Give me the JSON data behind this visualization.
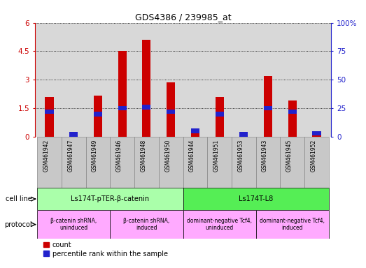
{
  "title": "GDS4386 / 239985_at",
  "samples": [
    "GSM461942",
    "GSM461947",
    "GSM461949",
    "GSM461946",
    "GSM461948",
    "GSM461950",
    "GSM461944",
    "GSM461951",
    "GSM461953",
    "GSM461943",
    "GSM461945",
    "GSM461952"
  ],
  "counts": [
    2.1,
    0.15,
    2.15,
    4.5,
    5.1,
    2.85,
    0.3,
    2.1,
    0.12,
    3.2,
    1.9,
    0.22
  ],
  "percentiles": [
    22,
    2,
    20,
    25,
    26,
    22,
    5,
    20,
    2,
    25,
    22,
    3
  ],
  "ylim_left": [
    0,
    6
  ],
  "ylim_right": [
    0,
    100
  ],
  "yticks_left": [
    0,
    1.5,
    3,
    4.5,
    6
  ],
  "yticks_right": [
    0,
    25,
    50,
    75,
    100
  ],
  "ytick_labels_left": [
    "0",
    "1.5",
    "3",
    "4.5",
    "6"
  ],
  "ytick_labels_right": [
    "0",
    "25",
    "50",
    "75",
    "100%"
  ],
  "bar_color": "#cc0000",
  "blue_color": "#2222cc",
  "bar_width": 0.35,
  "blue_marker_size": 0.25,
  "cell_line_groups": [
    {
      "label": "Ls174T-pTER-β-catenin",
      "start": 0,
      "end": 6,
      "color": "#aaffaa"
    },
    {
      "label": "Ls174T-L8",
      "start": 6,
      "end": 12,
      "color": "#55ee55"
    }
  ],
  "protocol_groups": [
    {
      "label": "β-catenin shRNA,\nuninduced",
      "start": 0,
      "end": 3,
      "color": "#ffaaff"
    },
    {
      "label": "β-catenin shRNA,\ninduced",
      "start": 3,
      "end": 6,
      "color": "#ffaaff"
    },
    {
      "label": "dominant-negative Tcf4,\nuninduced",
      "start": 6,
      "end": 9,
      "color": "#ffaaff"
    },
    {
      "label": "dominant-negative Tcf4,\ninduced",
      "start": 9,
      "end": 12,
      "color": "#ffaaff"
    }
  ],
  "legend_count_label": "count",
  "legend_percentile_label": "percentile rank within the sample",
  "cell_line_label": "cell line",
  "protocol_label": "protocol",
  "gridline_color": "#000000",
  "background_color": "#ffffff",
  "plot_bg_color": "#d8d8d8",
  "xtick_bg_color": "#c8c8c8"
}
